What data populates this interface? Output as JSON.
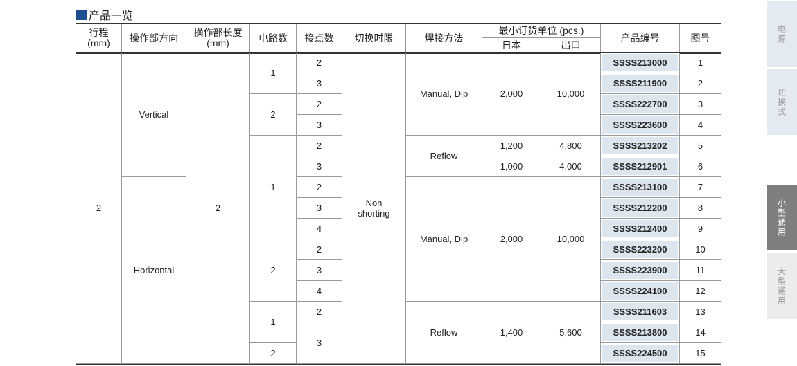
{
  "section_title": "产品一览",
  "header": {
    "stroke": "行程\n(mm)",
    "direction": "操作部方向",
    "length": "操作部长度\n(mm)",
    "circuits": "电路数",
    "contacts": "接点数",
    "timing": "切换时限",
    "soldering": "焊接方法",
    "min_unit": "最小订货单位 (pcs.)",
    "japan": "日本",
    "export": "出口",
    "part_no": "产品编号",
    "fig_no": "图号"
  },
  "columns": [
    [
      {
        "v": "2",
        "s": 15
      }
    ],
    [
      {
        "v": "Vertical",
        "s": 6
      },
      {
        "v": "Horizontal",
        "s": 9
      }
    ],
    [
      {
        "v": "2",
        "s": 15
      }
    ],
    [
      {
        "v": "1",
        "s": 2
      },
      {
        "v": "2",
        "s": 2
      },
      {
        "v": "1",
        "s": 5
      },
      {
        "v": "2",
        "s": 3
      },
      {
        "v": "1",
        "s": 2
      },
      {
        "v": "2",
        "s": 1
      }
    ],
    [
      {
        "v": "2",
        "s": 1
      },
      {
        "v": "3",
        "s": 1
      },
      {
        "v": "2",
        "s": 1
      },
      {
        "v": "3",
        "s": 1
      },
      {
        "v": "2",
        "s": 1
      },
      {
        "v": "3",
        "s": 1
      },
      {
        "v": "2",
        "s": 1
      },
      {
        "v": "3",
        "s": 1
      },
      {
        "v": "4",
        "s": 1
      },
      {
        "v": "2",
        "s": 1
      },
      {
        "v": "3",
        "s": 1
      },
      {
        "v": "4",
        "s": 1
      },
      {
        "v": "2",
        "s": 1
      },
      {
        "v": "3",
        "s": 2
      }
    ],
    [
      {
        "v": "Non\nshorting",
        "s": 15
      }
    ],
    [
      {
        "v": "Manual, Dip",
        "s": 4
      },
      {
        "v": "Reflow",
        "s": 2
      },
      {
        "v": "Manual, Dip",
        "s": 6
      },
      {
        "v": "Reflow",
        "s": 3
      }
    ],
    [
      {
        "v": "2,000",
        "s": 4
      },
      {
        "v": "1,200",
        "s": 1
      },
      {
        "v": "1,000",
        "s": 1
      },
      {
        "v": "2,000",
        "s": 6
      },
      {
        "v": "1,400",
        "s": 3
      }
    ],
    [
      {
        "v": "10,000",
        "s": 4
      },
      {
        "v": "4,800",
        "s": 1
      },
      {
        "v": "4,000",
        "s": 1
      },
      {
        "v": "10,000",
        "s": 6
      },
      {
        "v": "5,600",
        "s": 3
      }
    ],
    [
      {
        "v": "SSSS213000",
        "s": 1
      },
      {
        "v": "SSSS211900",
        "s": 1
      },
      {
        "v": "SSSS222700",
        "s": 1
      },
      {
        "v": "SSSS223600",
        "s": 1
      },
      {
        "v": "SSSS213202",
        "s": 1
      },
      {
        "v": "SSSS212901",
        "s": 1
      },
      {
        "v": "SSSS213100",
        "s": 1
      },
      {
        "v": "SSSS212200",
        "s": 1
      },
      {
        "v": "SSSS212400",
        "s": 1
      },
      {
        "v": "SSSS223200",
        "s": 1
      },
      {
        "v": "SSSS223900",
        "s": 1
      },
      {
        "v": "SSSS224100",
        "s": 1
      },
      {
        "v": "SSSS211603",
        "s": 1
      },
      {
        "v": "SSSS213800",
        "s": 1
      },
      {
        "v": "SSSS224500",
        "s": 1
      }
    ],
    [
      {
        "v": "1",
        "s": 1
      },
      {
        "v": "2",
        "s": 1
      },
      {
        "v": "3",
        "s": 1
      },
      {
        "v": "4",
        "s": 1
      },
      {
        "v": "5",
        "s": 1
      },
      {
        "v": "6",
        "s": 1
      },
      {
        "v": "7",
        "s": 1
      },
      {
        "v": "8",
        "s": 1
      },
      {
        "v": "9",
        "s": 1
      },
      {
        "v": "10",
        "s": 1
      },
      {
        "v": "11",
        "s": 1
      },
      {
        "v": "12",
        "s": 1
      },
      {
        "v": "13",
        "s": 1
      },
      {
        "v": "14",
        "s": 1
      },
      {
        "v": "15",
        "s": 1
      }
    ]
  ],
  "sidebar": [
    {
      "label": "电源",
      "active": false
    },
    {
      "label": "切换式",
      "active": false
    },
    {
      "label": "小型通用",
      "active": true
    },
    {
      "label": "大型通用",
      "active": false
    }
  ],
  "colors": {
    "accent": "#1d4e91",
    "part_bg": "#dde5ef",
    "tab_active": "#7f7f7f"
  }
}
